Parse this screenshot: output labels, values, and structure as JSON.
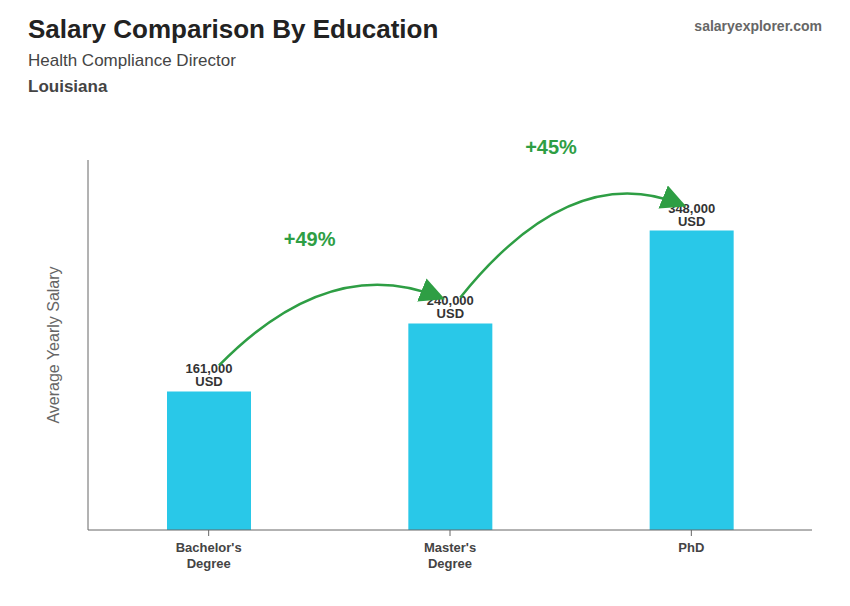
{
  "chart_data": {
    "type": "bar",
    "title": "Salary Comparison By Education",
    "subtitle": [
      "Health Compliance Director",
      "Louisiana"
    ],
    "watermark": "salaryexplorer.com",
    "y_label": "Average Yearly Salary",
    "categories": [
      "Bachelor's\nDegree",
      "Master's\nDegree",
      "PhD"
    ],
    "values": [
      161000,
      240000,
      348000
    ],
    "value_labels": [
      "161,000 USD",
      "240,000 USD",
      "348,000 USD"
    ],
    "data_labels": true,
    "annotations": [
      "+49%",
      "+45%"
    ],
    "color": "#29C8E8",
    "ylim": [
      0,
      430000
    ],
    "tick_labels": "x",
    "grid": false
  }
}
